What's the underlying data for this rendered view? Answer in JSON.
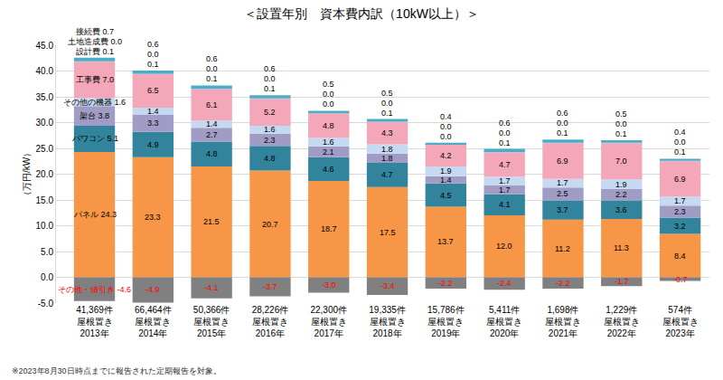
{
  "chart_data": {
    "type": "bar",
    "title": "＜設置年別　資本費内訳（10kW以上）＞",
    "y_label": "（万円/kW）",
    "footnote": "※2023年8月30日時点までに報告された定期報告を対象。",
    "stacked": true,
    "data_labels": true,
    "grid": true,
    "categories": [
      "41,369件\n屋根置き\n2013年",
      "66,464件\n屋根置き\n2014年",
      "50,366件\n屋根置き\n2015年",
      "28,226件\n屋根置き\n2016年",
      "22,300件\n屋根置き\n2017年",
      "19,335件\n屋根置き\n2018年",
      "15,786件\n屋根置き\n2019年",
      "5,411件\n屋根置き\n2020年",
      "1,698件\n屋根置き\n2021年",
      "1,229件\n屋根置き\n2022年",
      "574件\n屋根置き\n2023年"
    ],
    "ylim": [
      -5,
      45
    ],
    "yticks": [
      {
        "value": -5,
        "label": "-5.0"
      },
      {
        "value": 0,
        "label": "0.0"
      },
      {
        "value": 5,
        "label": "5.0"
      },
      {
        "value": 10,
        "label": "10.0"
      },
      {
        "value": 15,
        "label": "15.0"
      },
      {
        "value": 20,
        "label": "20.0"
      },
      {
        "value": 25,
        "label": "25.0"
      },
      {
        "value": 30,
        "label": "30.0"
      },
      {
        "value": 35,
        "label": "35.0"
      },
      {
        "value": 40,
        "label": "40.0"
      },
      {
        "value": 45,
        "label": "45.0"
      }
    ],
    "series": [
      {
        "name": "パネル",
        "color": "#f79646",
        "values": [
          24.3,
          23.3,
          21.5,
          20.7,
          18.7,
          17.5,
          13.7,
          12.0,
          11.2,
          11.3,
          8.4
        ],
        "value_labels": [
          "24.3",
          "23.3",
          "21.5",
          "20.7",
          "18.7",
          "17.5",
          "13.7",
          "12.0",
          "11.2",
          "11.3",
          "8.4"
        ]
      },
      {
        "name": "パワコン",
        "color": "#31849b",
        "values": [
          5.1,
          4.9,
          4.8,
          4.8,
          4.6,
          4.7,
          4.5,
          4.1,
          3.7,
          3.6,
          3.2
        ],
        "value_labels": [
          "5.1",
          "4.9",
          "4.8",
          "4.8",
          "4.6",
          "4.7",
          "4.5",
          "4.1",
          "3.7",
          "3.6",
          "3.2"
        ]
      },
      {
        "name": "架台",
        "color": "#a09cc6",
        "values": [
          3.8,
          3.3,
          2.7,
          2.3,
          2.1,
          1.8,
          1.4,
          1.7,
          2.5,
          2.2,
          2.3
        ],
        "value_labels": [
          "3.8",
          "3.3",
          "2.7",
          "2.3",
          "2.1",
          "1.8",
          "1.4",
          "1.7",
          "2.5",
          "2.2",
          "2.3"
        ]
      },
      {
        "name": "その他の機器",
        "color": "#c5d9f1",
        "values": [
          1.6,
          1.4,
          1.4,
          1.6,
          1.6,
          1.8,
          1.9,
          1.7,
          1.7,
          1.9,
          1.7
        ],
        "value_labels": [
          "1.6",
          "1.4",
          "1.4",
          "1.6",
          "1.6",
          "1.8",
          "1.9",
          "1.7",
          "1.7",
          "1.9",
          "1.7"
        ]
      },
      {
        "name": "工事費",
        "color": "#f4a7b9",
        "values": [
          7.0,
          6.5,
          6.1,
          5.2,
          4.8,
          4.3,
          4.2,
          4.7,
          6.9,
          7.0,
          6.9
        ],
        "value_labels": [
          "7.0",
          "6.5",
          "6.1",
          "5.2",
          "4.8",
          "4.3",
          "4.2",
          "4.7",
          "6.9",
          "7.0",
          "6.9"
        ]
      },
      {
        "name": "設計費",
        "color": "#8eb4e3",
        "values": [
          0.1,
          0.1,
          0.1,
          0.1,
          0.0,
          0.1,
          0.0,
          0.1,
          0.1,
          0.1,
          0.1
        ],
        "value_labels": [
          "0.1",
          "0.1",
          "0.1",
          "0.1",
          "0.0",
          "0.1",
          "0.0",
          "0.1",
          "0.1",
          "0.1",
          "0.1"
        ]
      },
      {
        "name": "土地造成費",
        "color": "#bfbfbf",
        "values": [
          0.0,
          0.0,
          0.0,
          0.0,
          0.0,
          0.0,
          0.0,
          0.0,
          0.0,
          0.0,
          0.0
        ],
        "value_labels": [
          "0.0",
          "0.0",
          "0.0",
          "0.0",
          "0.0",
          "0.0",
          "0.0",
          "0.0",
          "0.0",
          "0.0",
          "0.0"
        ]
      },
      {
        "name": "接続費",
        "color": "#4bacc6",
        "values": [
          0.7,
          0.6,
          0.6,
          0.6,
          0.5,
          0.5,
          0.4,
          0.6,
          0.6,
          0.5,
          0.4
        ],
        "value_labels": [
          "0.7",
          "0.6",
          "0.6",
          "0.6",
          "0.5",
          "0.5",
          "0.4",
          "0.6",
          "0.6",
          "0.5",
          "0.4"
        ]
      },
      {
        "name": "その他・値引き",
        "color": "#808080",
        "values": [
          -4.6,
          -4.9,
          -4.1,
          -3.7,
          -3.0,
          -3.4,
          -2.2,
          -2.4,
          -2.2,
          -1.7,
          -0.7
        ],
        "value_labels": [
          "-4.6",
          "-4.9",
          "-4.1",
          "-3.7",
          "-3.0",
          "-3.4",
          "-2.2",
          "-2.4",
          "-2.2",
          "-1.7",
          "-0.7"
        ]
      }
    ]
  }
}
